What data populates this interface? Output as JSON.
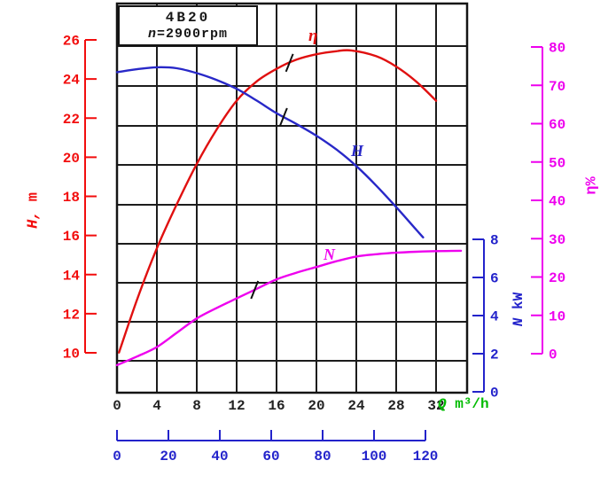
{
  "title_box": {
    "model": "4B20",
    "speed": "n=2900rpm"
  },
  "chart_data": {
    "type": "line",
    "title": "4B20",
    "subtitle": "n=2900rpm",
    "grid": "on",
    "x_axis": {
      "label": "Q m³/h",
      "color": "#00bb00",
      "tick_color": "#222222",
      "range": [
        0,
        35
      ],
      "ticks": [
        0,
        4,
        8,
        12,
        16,
        20,
        24,
        28,
        32
      ]
    },
    "x_axis_secondary": {
      "label": "",
      "color": "#2323cb",
      "range": [
        0,
        120
      ],
      "ticks": [
        0,
        20,
        40,
        60,
        80,
        100,
        120
      ]
    },
    "y_axes": {
      "head": {
        "label": "H, m",
        "color": "#f20d0d",
        "range": [
          10,
          26
        ],
        "ticks": [
          26,
          24,
          22,
          20,
          18,
          16,
          14,
          12,
          10
        ]
      },
      "efficiency": {
        "label": "η%",
        "color": "#ee00ee",
        "range": [
          0,
          80
        ],
        "ticks": [
          80,
          70,
          60,
          50,
          40,
          30,
          20,
          10,
          0
        ]
      },
      "power": {
        "label": "N kW",
        "color": "#2323cb",
        "range": [
          0,
          8
        ],
        "ticks": [
          8,
          6,
          4,
          2,
          0
        ]
      }
    },
    "series": [
      {
        "name": "η",
        "y_axis": "efficiency",
        "color": "#e01010",
        "mark_q": 17.3,
        "points": [
          [
            0.2,
            0.3
          ],
          [
            2,
            14
          ],
          [
            4,
            27.5
          ],
          [
            6,
            39
          ],
          [
            8,
            49.5
          ],
          [
            10,
            58.5
          ],
          [
            12,
            66
          ],
          [
            14,
            71
          ],
          [
            16,
            74.3
          ],
          [
            18,
            76.7
          ],
          [
            20,
            78.1
          ],
          [
            22,
            78.9
          ],
          [
            23.5,
            79.1
          ],
          [
            26,
            77.6
          ],
          [
            28,
            74.9
          ],
          [
            30,
            71
          ],
          [
            32,
            66
          ]
        ]
      },
      {
        "name": "H",
        "y_axis": "head",
        "color": "#2828c8",
        "mark_q": 16.7,
        "points": [
          [
            0,
            24.35
          ],
          [
            2,
            24.5
          ],
          [
            4,
            24.6
          ],
          [
            6,
            24.55
          ],
          [
            8,
            24.3
          ],
          [
            10,
            23.95
          ],
          [
            12,
            23.5
          ],
          [
            14,
            22.9
          ],
          [
            16,
            22.25
          ],
          [
            18,
            21.7
          ],
          [
            20,
            21.1
          ],
          [
            22,
            20.4
          ],
          [
            24,
            19.55
          ],
          [
            26,
            18.55
          ],
          [
            28,
            17.45
          ],
          [
            30,
            16.3
          ],
          [
            30.7,
            15.9
          ]
        ]
      },
      {
        "name": "N",
        "y_axis": "power",
        "color": "#ee00ee",
        "mark_q": 13.8,
        "points": [
          [
            0,
            1.4
          ],
          [
            2,
            1.85
          ],
          [
            4,
            2.35
          ],
          [
            6,
            3.1
          ],
          [
            8,
            3.85
          ],
          [
            10,
            4.4
          ],
          [
            12,
            4.9
          ],
          [
            14,
            5.4
          ],
          [
            16,
            5.9
          ],
          [
            18,
            6.25
          ],
          [
            20,
            6.55
          ],
          [
            22,
            6.85
          ],
          [
            24,
            7.1
          ],
          [
            26,
            7.22
          ],
          [
            28,
            7.3
          ],
          [
            30,
            7.35
          ],
          [
            32,
            7.38
          ],
          [
            34.5,
            7.4
          ]
        ]
      }
    ],
    "curve_labels": {
      "eta": "η",
      "head": "H",
      "power": "N"
    }
  }
}
